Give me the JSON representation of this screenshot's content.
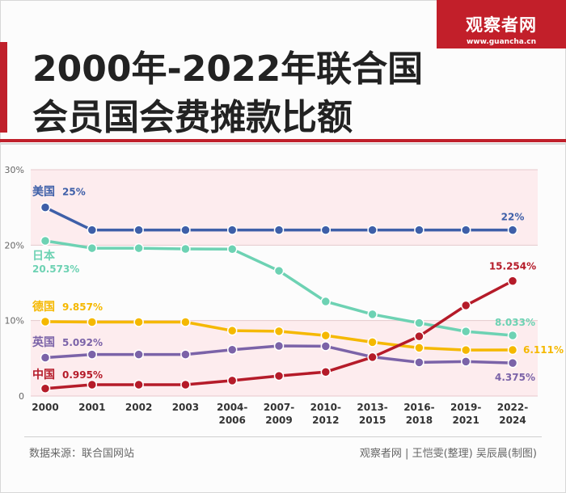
{
  "header": {
    "title_line1": "2000年-2022年联合国",
    "title_line2": "会员国会费摊款比额",
    "logo_text": "观察者网",
    "logo_url": "www.guancha.cn"
  },
  "footer": {
    "source": "数据来源：联合国网站",
    "credit": "观察者网 | 王恺雯(整理) 吴辰晨(制图)"
  },
  "colors": {
    "brand": "#c21f2a",
    "band": "#fdecee",
    "grid": "#e6c9cc"
  },
  "chart_data": {
    "type": "line",
    "title": "2000年-2022年联合国会员国会费摊款比额",
    "categories": [
      "2000",
      "2001",
      "2002",
      "2003",
      "2004-\n2006",
      "2007-\n2009",
      "2010-\n2012",
      "2013-\n2015",
      "2016-\n2018",
      "2019-\n2021",
      "2022-\n2024"
    ],
    "y_ticks": [
      {
        "value": 0,
        "label": "0"
      },
      {
        "value": 10,
        "label": "10%"
      },
      {
        "value": 20,
        "label": "20%"
      },
      {
        "value": 30,
        "label": "30%"
      }
    ],
    "ylim": [
      0,
      30
    ],
    "xlabel": "",
    "ylabel": "",
    "series": [
      {
        "name": "美国",
        "color": "#3e5fa8",
        "values": [
          25,
          22,
          22,
          22,
          22,
          22,
          22,
          22,
          22,
          22,
          22
        ],
        "start_label": "25%",
        "end_label": "22%"
      },
      {
        "name": "日本",
        "color": "#6dd2b3",
        "values": [
          20.573,
          19.6,
          19.6,
          19.5,
          19.47,
          16.6,
          12.53,
          10.83,
          9.68,
          8.56,
          8.033
        ],
        "start_label": "20.573%",
        "end_label": "8.033%"
      },
      {
        "name": "德国",
        "color": "#f5b800",
        "values": [
          9.857,
          9.8,
          9.8,
          9.8,
          8.66,
          8.58,
          8.02,
          7.14,
          6.39,
          6.09,
          6.111
        ],
        "start_label": "9.857%",
        "end_label": "6.111%"
      },
      {
        "name": "英国",
        "color": "#7b63a8",
        "values": [
          5.092,
          5.5,
          5.5,
          5.5,
          6.13,
          6.64,
          6.6,
          5.18,
          4.46,
          4.57,
          4.375
        ],
        "start_label": "5.092%",
        "end_label": "4.375%"
      },
      {
        "name": "中国",
        "color": "#b51b29",
        "values": [
          0.995,
          1.5,
          1.5,
          1.5,
          2.05,
          2.67,
          3.19,
          5.15,
          7.92,
          12.01,
          15.254
        ],
        "start_label": "0.995%",
        "end_label": "15.254%"
      }
    ]
  }
}
